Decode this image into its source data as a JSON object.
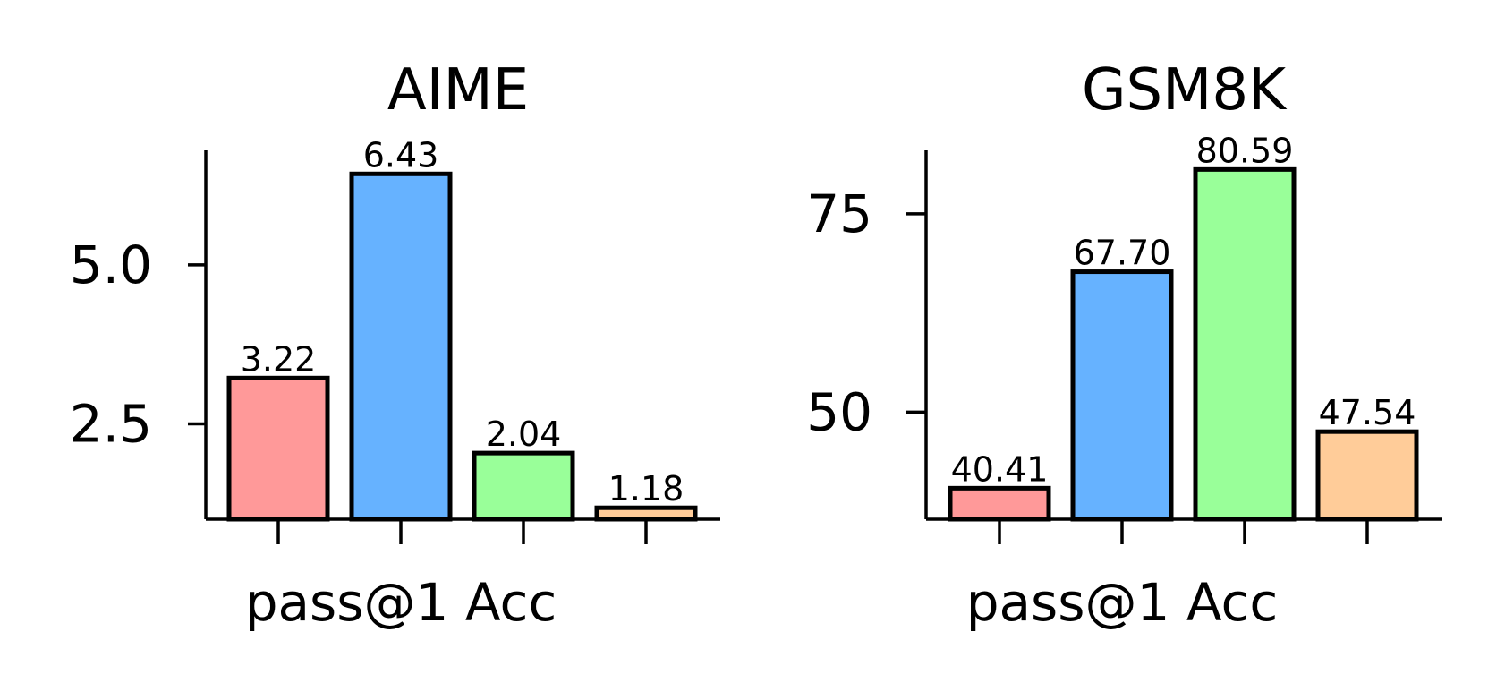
{
  "chart_data": [
    {
      "type": "bar",
      "title": "AIME",
      "xlabel": "pass@1 Acc",
      "ylabel": "",
      "ylim": [
        1.0,
        6.8
      ],
      "yticks": [
        2.5,
        5.0
      ],
      "ytick_labels": [
        "2.5",
        "5.0"
      ],
      "values": [
        3.22,
        6.43,
        2.04,
        1.18
      ],
      "value_labels": [
        "3.22",
        "6.43",
        "2.04",
        "1.18"
      ],
      "colors": [
        "#ff9999",
        "#66b2ff",
        "#99ff99",
        "#ffcc99"
      ],
      "grid": false,
      "legend": null
    },
    {
      "type": "bar",
      "title": "GSM8K",
      "xlabel": "pass@1 Acc",
      "ylabel": "",
      "ylim": [
        36.5,
        83.0
      ],
      "yticks": [
        50,
        75
      ],
      "ytick_labels": [
        "50",
        "75"
      ],
      "values": [
        40.41,
        67.7,
        80.59,
        47.54
      ],
      "value_labels": [
        "40.41",
        "67.70",
        "80.59",
        "47.54"
      ],
      "colors": [
        "#ff9999",
        "#66b2ff",
        "#99ff99",
        "#ffcc99"
      ],
      "grid": false,
      "legend": null
    }
  ]
}
